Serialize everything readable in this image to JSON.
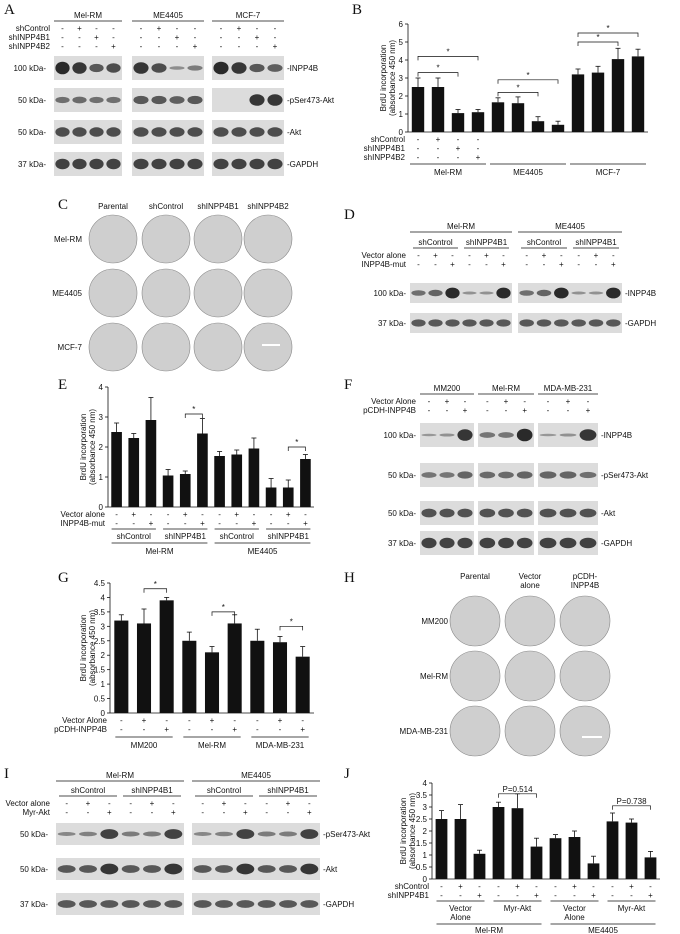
{
  "labels": {
    "A": "A",
    "B": "B",
    "C": "C",
    "D": "D",
    "E": "E",
    "F": "F",
    "G": "G",
    "H": "H",
    "I": "I",
    "J": "J"
  },
  "panelA": {
    "groups": [
      "Mel-RM",
      "ME4405",
      "MCF-7"
    ],
    "row_labels": [
      "shControl",
      "shINPP4B1",
      "shINPP4B2"
    ],
    "signs": [
      [
        "-",
        "+",
        "-",
        "-"
      ],
      [
        "-",
        "-",
        "+",
        "-"
      ],
      [
        "-",
        "-",
        "-",
        "+"
      ]
    ],
    "mw": [
      "100 kDa-",
      "50 kDa-",
      "50 kDa-",
      "37 kDa-"
    ],
    "proteins": [
      "-INPP4B",
      "-pSer473-Akt",
      "-Akt",
      "-GAPDH"
    ]
  },
  "panelB": {
    "chart_data": {
      "type": "bar",
      "ylabel": "BrdU incorporation\n(absorbance 450 nm)",
      "ylim": [
        0,
        6
      ],
      "yticks": [
        "0",
        "1",
        "2",
        "3",
        "4",
        "5",
        "6"
      ],
      "groups": [
        "Mel-RM",
        "ME4405",
        "MCF-7"
      ],
      "values": [
        2.5,
        2.5,
        1.05,
        1.1,
        1.65,
        1.6,
        0.6,
        0.4,
        3.2,
        3.3,
        4.05,
        4.2
      ],
      "errors": [
        0.5,
        0.5,
        0.2,
        0.15,
        0.25,
        0.35,
        0.25,
        0.2,
        0.3,
        0.35,
        0.6,
        0.4
      ],
      "row_labels": [
        "shControl",
        "shINPP4B1",
        "shINPP4B2"
      ],
      "signs": [
        [
          "-",
          "+",
          "-",
          "-"
        ],
        [
          "-",
          "-",
          "+",
          "-"
        ],
        [
          "-",
          "-",
          "-",
          "+"
        ]
      ],
      "sig": "*"
    }
  },
  "panelC": {
    "cols": [
      "Parental",
      "shControl",
      "shINPP4B1",
      "shINPP4B2"
    ],
    "rows": [
      "Mel-RM",
      "ME4405",
      "MCF-7"
    ]
  },
  "panelD": {
    "groups": [
      "Mel-RM",
      "ME4405"
    ],
    "subgroups": [
      "shControl",
      "shINPP4B1",
      "shControl",
      "shINPP4B1"
    ],
    "row_labels": [
      "Vector alone",
      "INPP4B-mut"
    ],
    "signs": [
      [
        "-",
        "+",
        "-",
        "-",
        "+",
        "-"
      ],
      [
        "-",
        "-",
        "+",
        "-",
        "-",
        "+"
      ]
    ],
    "mw": [
      "100 kDa-",
      "37 kDa-"
    ],
    "proteins": [
      "-INPP4B",
      "-GAPDH"
    ]
  },
  "panelE": {
    "chart_data": {
      "type": "bar",
      "ylabel": "BrdU incorporation\n(absorbance 450 nm)",
      "ylim": [
        0,
        4
      ],
      "yticks": [
        "0",
        "1",
        "2",
        "3",
        "4"
      ],
      "values": [
        2.5,
        2.3,
        2.9,
        1.05,
        1.1,
        2.45,
        1.7,
        1.75,
        1.95,
        0.65,
        0.65,
        1.6
      ],
      "errors": [
        0.3,
        0.15,
        0.75,
        0.2,
        0.1,
        0.5,
        0.15,
        0.15,
        0.35,
        0.3,
        0.25,
        0.15
      ],
      "row_labels": [
        "Vector alone",
        "INPP4B-mut"
      ],
      "signs": [
        [
          "-",
          "+",
          "-",
          "-",
          "+",
          "-",
          "-",
          "+",
          "-",
          "-",
          "+",
          "-"
        ],
        [
          "-",
          "-",
          "+",
          "-",
          "-",
          "+",
          "-",
          "-",
          "+",
          "-",
          "-",
          "+"
        ]
      ],
      "subgroups": [
        "shControl",
        "shINPP4B1",
        "shControl",
        "shINPP4B1"
      ],
      "groups": [
        "Mel-RM",
        "ME4405"
      ],
      "sig": "*"
    }
  },
  "panelF": {
    "groups": [
      "MM200",
      "Mel-RM",
      "MDA-MB-231"
    ],
    "row_labels": [
      "Vector Alone",
      "pCDH-INPP4B"
    ],
    "signs": [
      [
        "-",
        "+",
        "-"
      ],
      [
        "-",
        "-",
        "+"
      ]
    ],
    "mw": [
      "100 kDa-",
      "50 kDa-",
      "50 kDa-",
      "37 kDa-"
    ],
    "proteins": [
      "-INPP4B",
      "-pSer473-Akt",
      "-Akt",
      "-GAPDH"
    ]
  },
  "panelG": {
    "chart_data": {
      "type": "bar",
      "ylabel": "BrdU incorporation\n(absorbance 450 nm)",
      "ylim": [
        0,
        4.5
      ],
      "yticks": [
        "0",
        "0.5",
        "1",
        "1.5",
        "2",
        "2.5",
        "3",
        "3.5",
        "4",
        "4.5"
      ],
      "values": [
        3.2,
        3.1,
        3.9,
        2.5,
        2.1,
        3.1,
        2.5,
        2.45,
        1.95
      ],
      "errors": [
        0.2,
        0.5,
        0.1,
        0.3,
        0.2,
        0.3,
        0.4,
        0.2,
        0.35
      ],
      "row_labels": [
        "Vector Alone",
        "pCDH-INPP4B"
      ],
      "signs": [
        [
          "-",
          "+",
          "-",
          "-",
          "+",
          "-",
          "-",
          "+",
          "-"
        ],
        [
          "-",
          "-",
          "+",
          "-",
          "-",
          "+",
          "-",
          "-",
          "+"
        ]
      ],
      "groups": [
        "MM200",
        "Mel-RM",
        "MDA-MB-231"
      ],
      "sig": "*"
    }
  },
  "panelH": {
    "cols": [
      "Parental",
      "Vector\nalone",
      "pCDH-\nINPP4B"
    ],
    "rows": [
      "MM200",
      "Mel-RM",
      "MDA-MB-231"
    ]
  },
  "panelI": {
    "groups": [
      "Mel-RM",
      "ME4405"
    ],
    "subgroups": [
      "shControl",
      "shINPP4B1",
      "shControl",
      "shINPP4B1"
    ],
    "row_labels": [
      "Vector alone",
      "Myr-Akt"
    ],
    "signs": [
      [
        "-",
        "+",
        "-",
        "-",
        "+",
        "-"
      ],
      [
        "-",
        "-",
        "+",
        "-",
        "-",
        "+"
      ]
    ],
    "mw": [
      "50 kDa-",
      "50 kDa-",
      "37 kDa-"
    ],
    "proteins": [
      "-pSer473-Akt",
      "-Akt",
      "-GAPDH"
    ]
  },
  "panelJ": {
    "chart_data": {
      "type": "bar",
      "ylabel": "BrdU incorporation\n(absorbance 450 nm)",
      "ylim": [
        0,
        4
      ],
      "yticks": [
        "0",
        "0.5",
        "1",
        "1.5",
        "2",
        "2.5",
        "3",
        "3.5",
        "4"
      ],
      "values": [
        2.5,
        2.5,
        1.05,
        3.0,
        2.95,
        1.35,
        1.7,
        1.75,
        0.65,
        2.4,
        2.35,
        0.9
      ],
      "errors": [
        0.35,
        0.6,
        0.15,
        0.2,
        0.6,
        0.35,
        0.15,
        0.25,
        0.3,
        0.35,
        0.15,
        0.25
      ],
      "row_labels": [
        "shControl",
        "shINPP4B1"
      ],
      "signs": [
        [
          "-",
          "+",
          "-",
          "-",
          "+",
          "-",
          "-",
          "+",
          "-",
          "-",
          "+",
          "-"
        ],
        [
          "-",
          "-",
          "+",
          "-",
          "-",
          "+",
          "-",
          "-",
          "+",
          "-",
          "-",
          "+"
        ]
      ],
      "subgroups": [
        "Vector\nAlone",
        "Myr-Akt",
        "Vector\nAlone",
        "Myr-Akt"
      ],
      "groups": [
        "Mel-RM",
        "ME4405"
      ],
      "pvals": [
        "P=0.514",
        "P=0.738"
      ]
    }
  }
}
